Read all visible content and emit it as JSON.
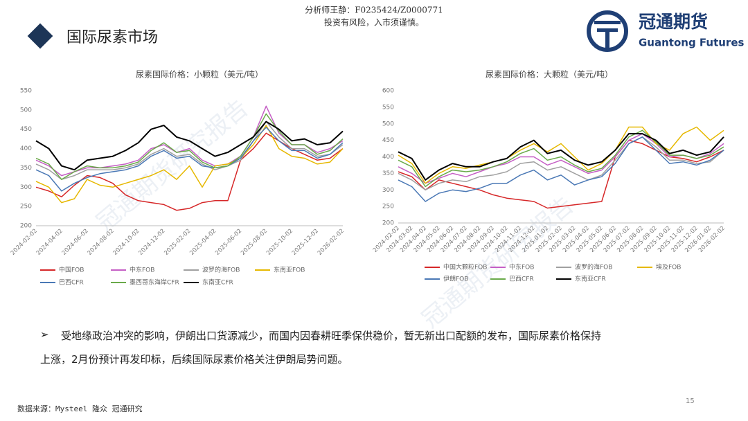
{
  "header": {
    "analyst": "分析师王静：F0235424/Z0000771",
    "risk": "投资有风险，入市须谨慎。",
    "title": "国际尿素市场",
    "logo_cn": "冠通期货",
    "logo_en": "Guantong Futures"
  },
  "watermark": "冠通期货研究报告",
  "body": {
    "bullet": "➢",
    "lines": [
      "受地缘政治冲突的影响，伊朗出口货源减少，而国内因春耕旺季保供稳价，暂无新出口配额的发布，国际尿素价格保持",
      "上涨，2月份预计再发印标，后续国际尿素价格关注伊朗局势问题。"
    ]
  },
  "footer": {
    "source": "数据来源：Mysteel 隆众 冠通研究",
    "page": "15"
  },
  "chart_data": [
    {
      "type": "line",
      "title": "尿素国际价格：小颗粒（美元/吨）",
      "categories": [
        "2024-02-02",
        null,
        "2024-04-02",
        null,
        "2024-06-02",
        null,
        "2024-08-02",
        null,
        "2024-10-02",
        null,
        "2024-12-02",
        null,
        "2025-02-02",
        null,
        "2025-04-02",
        null,
        "2025-06-02",
        null,
        "2025-08-02",
        null,
        "2025-10-02",
        null,
        "2025-12-02",
        null,
        "2026-02-02"
      ],
      "ylim": [
        200,
        550
      ],
      "yticks": [
        200,
        250,
        300,
        350,
        400,
        450,
        500,
        550
      ],
      "grid": false,
      "series": [
        {
          "name": "中国FOB",
          "color": "#d62728",
          "values": [
            300,
            290,
            275,
            305,
            330,
            325,
            310,
            280,
            265,
            260,
            255,
            240,
            245,
            260,
            265,
            265,
            370,
            400,
            440,
            420,
            400,
            385,
            370,
            375,
            400
          ]
        },
        {
          "name": "中东FOB",
          "color": "#c55fc5",
          "values": [
            370,
            355,
            330,
            340,
            350,
            350,
            355,
            360,
            370,
            400,
            410,
            390,
            400,
            370,
            355,
            360,
            380,
            430,
            510,
            440,
            410,
            410,
            390,
            400,
            420
          ]
        },
        {
          "name": "波罗的海FOB",
          "color": "#a0a0a0",
          "values": [
            360,
            345,
            320,
            330,
            345,
            345,
            345,
            350,
            360,
            385,
            400,
            380,
            385,
            360,
            345,
            355,
            370,
            420,
            470,
            430,
            400,
            400,
            380,
            385,
            410
          ]
        },
        {
          "name": "东南亚FOB",
          "color": "#e6b800",
          "values": [
            315,
            300,
            260,
            270,
            320,
            305,
            300,
            310,
            320,
            330,
            345,
            320,
            355,
            300,
            355,
            360,
            375,
            410,
            460,
            400,
            380,
            375,
            360,
            365,
            400
          ]
        },
        {
          "name": "巴西CFR",
          "color": "#4a78b5",
          "values": [
            345,
            330,
            290,
            310,
            325,
            335,
            340,
            345,
            355,
            380,
            395,
            375,
            380,
            355,
            350,
            355,
            375,
            420,
            455,
            420,
            395,
            395,
            375,
            385,
            415
          ]
        },
        {
          "name": "墨西哥东海岸CFR",
          "color": "#6aaa4a",
          "values": [
            375,
            360,
            320,
            340,
            355,
            350,
            350,
            355,
            365,
            395,
            415,
            390,
            395,
            365,
            350,
            355,
            380,
            430,
            490,
            445,
            410,
            410,
            385,
            395,
            425
          ]
        },
        {
          "name": "东南亚CFR",
          "color": "#000000",
          "values": [
            420,
            400,
            355,
            345,
            370,
            375,
            380,
            395,
            415,
            450,
            460,
            430,
            420,
            400,
            380,
            390,
            410,
            430,
            470,
            450,
            420,
            425,
            410,
            415,
            445
          ]
        }
      ]
    },
    {
      "type": "line",
      "title": "尿素国际价格：大颗粒（美元/吨）",
      "categories": [
        "2024-02-02",
        "2024-03-02",
        "2024-04-02",
        "2024-05-02",
        "2024-06-02",
        "2024-07-02",
        "2024-08-02",
        "2024-09-02",
        "2024-10-02",
        "2024-11-02",
        "2024-12-02",
        "2025-01-02",
        "2025-02-02",
        "2025-03-02",
        "2025-04-02",
        "2025-05-02",
        "2025-06-02",
        "2025-07-02",
        "2025-08-02",
        "2025-09-02",
        "2025-10-02",
        "2025-11-02",
        "2025-12-02",
        "2026-01-02",
        "2026-02-02"
      ],
      "ylim": [
        200,
        600
      ],
      "yticks": [
        200,
        250,
        300,
        350,
        400,
        450,
        500,
        550,
        600
      ],
      "grid": false,
      "series": [
        {
          "name": "中国大颗粒FOB",
          "color": "#d62728",
          "values": [
            355,
            340,
            300,
            330,
            320,
            310,
            300,
            285,
            275,
            270,
            265,
            245,
            250,
            255,
            260,
            265,
            400,
            450,
            440,
            420,
            400,
            395,
            385,
            400,
            420
          ]
        },
        {
          "name": "中东FOB",
          "color": "#c55fc5",
          "values": [
            370,
            350,
            320,
            335,
            350,
            340,
            355,
            370,
            380,
            400,
            400,
            375,
            390,
            370,
            350,
            360,
            400,
            450,
            470,
            440,
            400,
            405,
            395,
            410,
            440
          ]
        },
        {
          "name": "波罗的海FOB",
          "color": "#a0a0a0",
          "values": [
            350,
            330,
            300,
            320,
            330,
            325,
            340,
            345,
            355,
            380,
            385,
            360,
            370,
            350,
            330,
            345,
            390,
            440,
            460,
            430,
            390,
            390,
            380,
            385,
            420
          ]
        },
        {
          "name": "埃及FOB",
          "color": "#e6b800",
          "values": [
            405,
            380,
            320,
            350,
            370,
            365,
            375,
            385,
            395,
            420,
            440,
            415,
            440,
            400,
            360,
            380,
            420,
            490,
            490,
            440,
            420,
            470,
            490,
            450,
            480
          ]
        },
        {
          "name": "伊朗FOB",
          "color": "#4a78b5",
          "values": [
            330,
            310,
            265,
            290,
            300,
            295,
            305,
            320,
            320,
            345,
            360,
            330,
            345,
            315,
            330,
            340,
            380,
            440,
            460,
            420,
            380,
            385,
            375,
            390,
            420
          ]
        },
        {
          "name": "巴西CFR",
          "color": "#6aaa4a",
          "values": [
            390,
            370,
            310,
            340,
            360,
            355,
            360,
            370,
            385,
            410,
            425,
            390,
            400,
            375,
            355,
            365,
            405,
            460,
            480,
            445,
            405,
            405,
            395,
            405,
            430
          ]
        },
        {
          "name": "东南亚CFR",
          "color": "#000000",
          "values": [
            415,
            395,
            330,
            360,
            380,
            370,
            370,
            385,
            395,
            430,
            450,
            410,
            420,
            390,
            375,
            385,
            420,
            470,
            470,
            450,
            410,
            420,
            405,
            415,
            460
          ]
        }
      ]
    }
  ]
}
